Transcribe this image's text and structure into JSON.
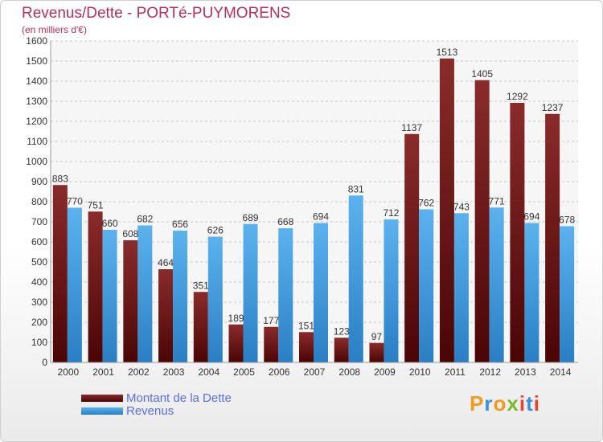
{
  "chart_data": {
    "type": "bar",
    "title": "Revenus/Dette - PORTé-PUYMORENS",
    "subtitle": "(en milliers d'€)",
    "categories": [
      "2000",
      "2001",
      "2002",
      "2003",
      "2004",
      "2005",
      "2006",
      "2007",
      "2008",
      "2009",
      "2010",
      "2011",
      "2012",
      "2013",
      "2014"
    ],
    "series": [
      {
        "name": "Montant de la Dette",
        "color": "#7a1f1f",
        "values": [
          883,
          751,
          608,
          464,
          351,
          189,
          177,
          151,
          123,
          97,
          1137,
          1513,
          1405,
          1292,
          1237
        ]
      },
      {
        "name": "Revenus",
        "color": "#4aa3e4",
        "values": [
          770,
          660,
          682,
          656,
          626,
          689,
          668,
          694,
          831,
          712,
          762,
          743,
          771,
          694,
          678
        ]
      }
    ],
    "ylim": [
      0,
      1600
    ],
    "yticks": [
      0,
      100,
      200,
      300,
      400,
      500,
      600,
      700,
      800,
      900,
      1000,
      1100,
      1200,
      1300,
      1400,
      1500,
      1600
    ],
    "grid": true,
    "legend": "bottom-left"
  },
  "logo": {
    "text": "Proxiti",
    "colors": [
      "#f29a1d",
      "#3a8fd6",
      "#7ab928",
      "#e8432b"
    ]
  }
}
